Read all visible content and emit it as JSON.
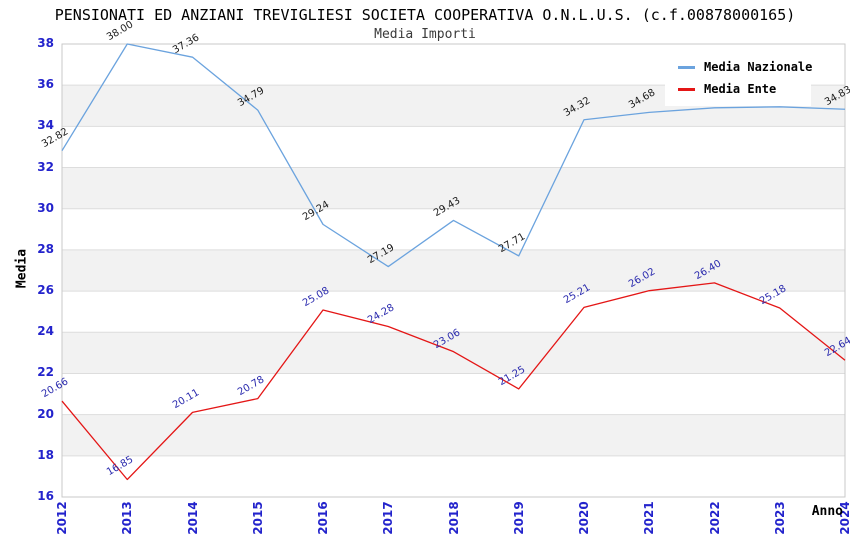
{
  "chart_data": {
    "type": "line",
    "title": "PENSIONATI ED ANZIANI TREVIGLIESI SOCIETA COOPERATIVA O.N.L.U.S. (c.f.00878000165)",
    "subtitle": "Media Importi",
    "xlabel": "Anno",
    "ylabel": "Media",
    "ylim": [
      16,
      38
    ],
    "ytick_step": 2,
    "categories": [
      "2012",
      "2013",
      "2014",
      "2015",
      "2016",
      "2017",
      "2018",
      "2019",
      "2020",
      "2021",
      "2022",
      "2023",
      "2024"
    ],
    "series": [
      {
        "name": "Media Nazionale",
        "color": "#6ba3de",
        "label_color": "#1c1c1c",
        "values": [
          32.82,
          38.0,
          37.36,
          34.79,
          29.24,
          27.19,
          29.43,
          27.71,
          34.32,
          34.68,
          34.9,
          34.95,
          34.83
        ]
      },
      {
        "name": "Media Ente",
        "color": "#e41616",
        "label_color": "#2828ad",
        "values": [
          20.66,
          16.85,
          20.11,
          20.78,
          25.08,
          24.28,
          23.06,
          21.25,
          25.21,
          26.02,
          26.4,
          25.18,
          22.64
        ]
      }
    ],
    "grid": true,
    "legend_position": "top-right",
    "tick_color": "#2323cc",
    "band_colors": [
      "#ffffff",
      "#f2f2f2"
    ],
    "grid_color": "#dddddd",
    "frame_color": "#c9c9c9"
  }
}
